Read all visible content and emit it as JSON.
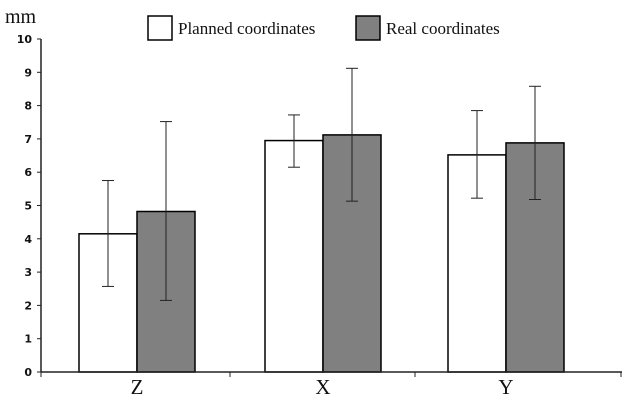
{
  "chart_data": {
    "type": "bar",
    "ylabel": "mm",
    "ylim": [
      0,
      10
    ],
    "yticks": [
      "0",
      "1",
      "2",
      "3",
      "4",
      "5",
      "6",
      "7",
      "8",
      "9",
      "10"
    ],
    "categories": [
      "Z",
      "X",
      "Y"
    ],
    "series": [
      {
        "name": "Planned coordinates",
        "color": "#ffffff",
        "values": [
          4.15,
          6.95,
          6.52
        ],
        "error_low": [
          2.57,
          6.15,
          5.22
        ],
        "error_high": [
          5.75,
          7.72,
          7.85
        ]
      },
      {
        "name": "Real coordinates",
        "color": "#808080",
        "values": [
          4.82,
          7.12,
          6.88
        ],
        "error_low": [
          2.15,
          5.13,
          5.18
        ],
        "error_high": [
          7.52,
          9.12,
          8.58
        ]
      }
    ],
    "legend_position": "top-center",
    "grid": false
  }
}
